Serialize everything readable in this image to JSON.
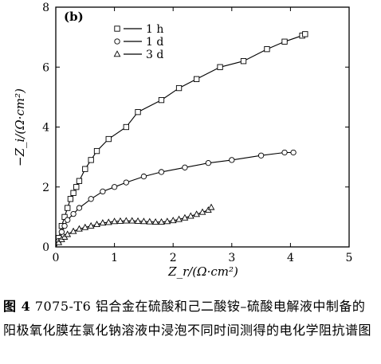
{
  "chart_data": {
    "type": "scatter",
    "panel_label": "(b)",
    "xlabel": "Z_r/(Ω·cm²)",
    "ylabel": "−Z_i/(Ω·cm²)",
    "xlim": [
      0,
      5
    ],
    "ylim": [
      0,
      8
    ],
    "xticks": [
      0,
      1,
      2,
      3,
      4,
      5
    ],
    "yticks": [
      0,
      2,
      4,
      6,
      8
    ],
    "legend_position": "top-left",
    "grid": false,
    "series": [
      {
        "name": "1 h",
        "marker": "square",
        "x": [
          0.05,
          0.1,
          0.15,
          0.2,
          0.25,
          0.3,
          0.35,
          0.4,
          0.5,
          0.6,
          0.7,
          0.9,
          1.2,
          1.4,
          1.8,
          2.1,
          2.4,
          2.8,
          3.2,
          3.6,
          3.9,
          4.2,
          4.25
        ],
        "y": [
          0.3,
          0.7,
          1.0,
          1.3,
          1.6,
          1.8,
          2.0,
          2.2,
          2.6,
          2.9,
          3.2,
          3.6,
          4.0,
          4.5,
          4.9,
          5.3,
          5.6,
          6.0,
          6.2,
          6.6,
          6.85,
          7.05,
          7.1
        ]
      },
      {
        "name": "1 d",
        "marker": "circle",
        "x": [
          0.05,
          0.1,
          0.15,
          0.2,
          0.3,
          0.4,
          0.6,
          0.8,
          1.0,
          1.2,
          1.5,
          1.8,
          2.2,
          2.6,
          3.0,
          3.5,
          3.9,
          4.05
        ],
        "y": [
          0.2,
          0.5,
          0.7,
          0.9,
          1.1,
          1.3,
          1.6,
          1.85,
          2.0,
          2.15,
          2.35,
          2.5,
          2.65,
          2.8,
          2.9,
          3.05,
          3.15,
          3.15
        ]
      },
      {
        "name": "3 d",
        "marker": "triangle",
        "x": [
          0.05,
          0.1,
          0.15,
          0.2,
          0.3,
          0.4,
          0.5,
          0.6,
          0.7,
          0.8,
          0.9,
          1.0,
          1.1,
          1.2,
          1.3,
          1.4,
          1.5,
          1.6,
          1.7,
          1.8,
          1.9,
          2.0,
          2.1,
          2.2,
          2.3,
          2.4,
          2.5,
          2.6,
          2.65
        ],
        "y": [
          0.15,
          0.25,
          0.33,
          0.42,
          0.52,
          0.6,
          0.65,
          0.7,
          0.75,
          0.8,
          0.82,
          0.85,
          0.86,
          0.87,
          0.87,
          0.86,
          0.85,
          0.84,
          0.83,
          0.83,
          0.85,
          0.88,
          0.92,
          0.97,
          1.03,
          1.09,
          1.16,
          1.23,
          1.32
        ]
      }
    ]
  },
  "caption": {
    "figure_label": "图 4",
    "text": "7075-T6 铝合金在硫酸和己二酸铵–硫酸电解液中制备的阳极氧化膜在氯化钠溶液中浸泡不同时间测得的电化学阻抗谱图"
  }
}
